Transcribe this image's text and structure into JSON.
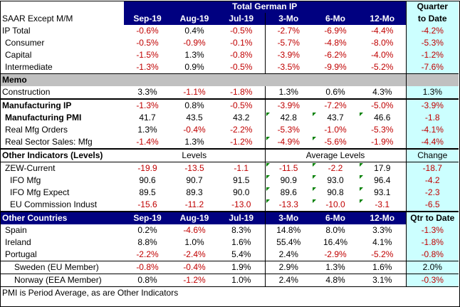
{
  "title": "Total German IP",
  "subtitle": "SAAR Except M/M",
  "quarter_header": [
    "Quarter",
    "to Date"
  ],
  "columns": [
    "Sep-19",
    "Aug-19",
    "Jul-19",
    "3-Mo",
    "6-Mo",
    "12-Mo"
  ],
  "ip": [
    {
      "label": "IP Total",
      "values": [
        "-0.6%",
        "0.4%",
        "-0.5%",
        "-2.7%",
        "-6.9%",
        "-4.4%"
      ],
      "q": "-4.2%"
    },
    {
      "label": "Consumer",
      "values": [
        "-0.5%",
        "-0.9%",
        "-0.1%",
        "-5.7%",
        "-4.8%",
        "-8.0%"
      ],
      "q": "-5.3%"
    },
    {
      "label": "Capital",
      "values": [
        "-1.5%",
        "1.3%",
        "-0.8%",
        "-3.9%",
        "-6.2%",
        "-4.0%"
      ],
      "q": "-1.2%"
    },
    {
      "label": "Intermediate",
      "values": [
        "-1.3%",
        "0.9%",
        "-0.5%",
        "-3.5%",
        "-9.9%",
        "-5.2%"
      ],
      "q": "-7.6%"
    }
  ],
  "memo": {
    "label": "Memo",
    "rows": [
      {
        "label": "Construction",
        "values": [
          "3.3%",
          "-1.1%",
          "-1.8%",
          "1.3%",
          "0.6%",
          "4.3%"
        ],
        "q": "1.3%"
      }
    ]
  },
  "mfg": [
    {
      "label": "Manufacturing IP",
      "values": [
        "-1.3%",
        "0.8%",
        "-0.5%",
        "-3.9%",
        "-7.2%",
        "-5.0%"
      ],
      "q": "-3.9%"
    },
    {
      "label": "Manufacturing PMI",
      "values": [
        "41.7",
        "43.5",
        "43.2",
        "42.8",
        "43.7",
        "46.6"
      ],
      "q": "-1.8"
    },
    {
      "label": "Real Mfg Orders",
      "values": [
        "1.3%",
        "-0.4%",
        "-2.2%",
        "-5.3%",
        "-1.0%",
        "-5.3%"
      ],
      "q": "-4.1%"
    },
    {
      "label": "Real Sector Sales: Mfg",
      "values": [
        "-1.4%",
        "1.3%",
        "-1.2%",
        "-4.9%",
        "-5.6%",
        "-1.9%"
      ],
      "q": "-4.4%"
    }
  ],
  "other": {
    "label": "Other Indicators (Levels)",
    "levels_label": "Levels",
    "avg_label": "Average Levels",
    "change_label": "Change",
    "rows": [
      {
        "label": "ZEW-Current",
        "values": [
          "-19.9",
          "-13.5",
          "-1.1",
          "-11.5",
          "-2.2",
          "17.9"
        ],
        "q": "-18.7"
      },
      {
        "label": "IFO Mfg",
        "values": [
          "90.6",
          "90.7",
          "91.5",
          "90.9",
          "93.0",
          "96.4"
        ],
        "q": "-4.2"
      },
      {
        "label": "IFO Mfg Expect",
        "values": [
          "89.5",
          "89.3",
          "90.0",
          "89.6",
          "90.8",
          "93.1"
        ],
        "q": "-2.3"
      },
      {
        "label": "EU Commission Indust",
        "values": [
          "-15.6",
          "-11.2",
          "-13.0",
          "-13.3",
          "-10.0",
          "-3.1"
        ],
        "q": "-6.5"
      }
    ]
  },
  "countries": {
    "label": "Other Countries",
    "q_label": "Qtr to Date",
    "rows": [
      {
        "label": "Spain",
        "values": [
          "0.2%",
          "-4.6%",
          "8.3%",
          "14.8%",
          "8.0%",
          "3.3%"
        ],
        "q": "-1.3%"
      },
      {
        "label": "Ireland",
        "values": [
          "8.8%",
          "1.0%",
          "1.6%",
          "55.4%",
          "16.4%",
          "4.1%"
        ],
        "q": "-1.8%"
      },
      {
        "label": "Portugal",
        "values": [
          "-2.2%",
          "-2.4%",
          "5.4%",
          "2.4%",
          "-2.9%",
          "-5.2%"
        ],
        "q": "-0.8%"
      },
      {
        "label": "Sweden (EU Member)",
        "values": [
          "-0.8%",
          "-0.4%",
          "1.9%",
          "2.9%",
          "1.3%",
          "1.6%"
        ],
        "q": "2.0%"
      },
      {
        "label": "Norway (EEA Member)",
        "values": [
          "0.8%",
          "-1.2%",
          "1.0%",
          "2.4%",
          "4.8%",
          "3.1%"
        ],
        "q": "-0.3%"
      }
    ]
  },
  "note": "PMI is Period Average, as are Other Indicators",
  "colors": {
    "header_bg": "#000080",
    "quarter_bg": "#ccffff",
    "negative": "#c00000",
    "memo_bg": "#c0c0c0",
    "marker": "#008000"
  }
}
